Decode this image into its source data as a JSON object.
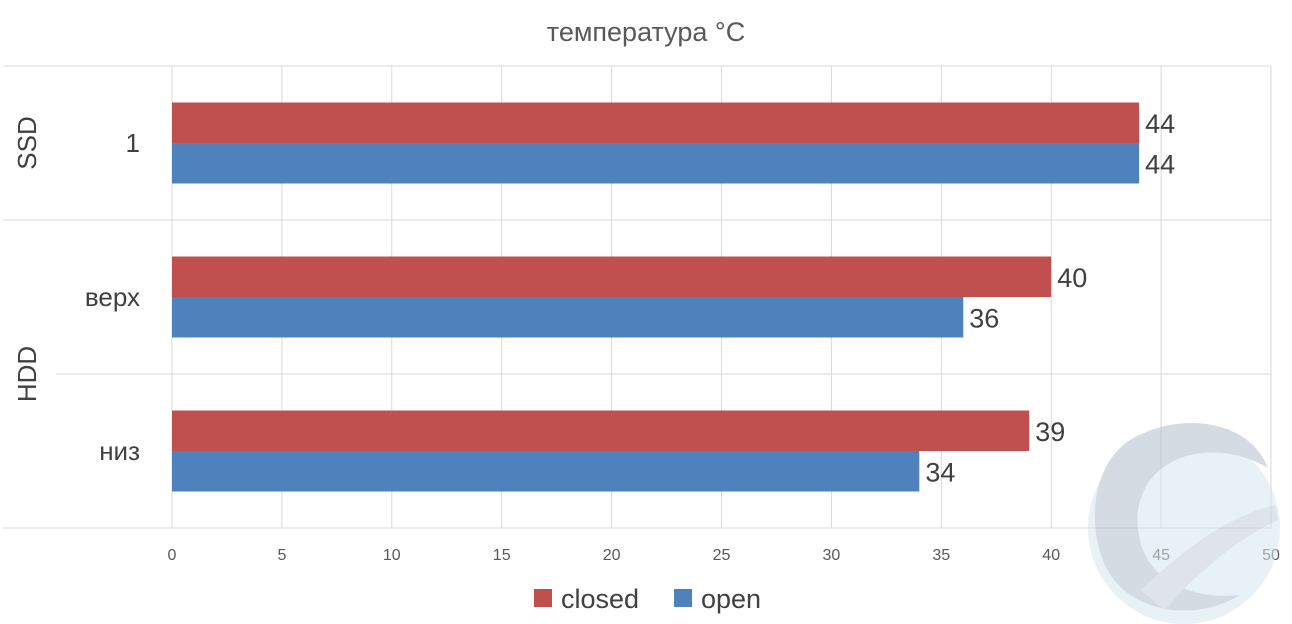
{
  "chart_data": {
    "type": "bar",
    "orientation": "horizontal",
    "title": "температура °C",
    "groups": [
      {
        "label": "SSD",
        "categories": [
          "1"
        ]
      },
      {
        "label": "HDD",
        "categories": [
          "верх",
          "низ"
        ]
      }
    ],
    "categories": [
      "1",
      "верх",
      "низ"
    ],
    "series": [
      {
        "name": "closed",
        "color": "#c0504d",
        "values": [
          44,
          40,
          39
        ]
      },
      {
        "name": "open",
        "color": "#4f81bd",
        "values": [
          44,
          36,
          34
        ]
      }
    ],
    "xlim": [
      0,
      50
    ],
    "xticks": [
      0,
      5,
      10,
      15,
      20,
      25,
      30,
      35,
      40,
      45,
      50
    ],
    "grid": true,
    "legend": "bottom-center",
    "watermark": "logo-swirl"
  }
}
